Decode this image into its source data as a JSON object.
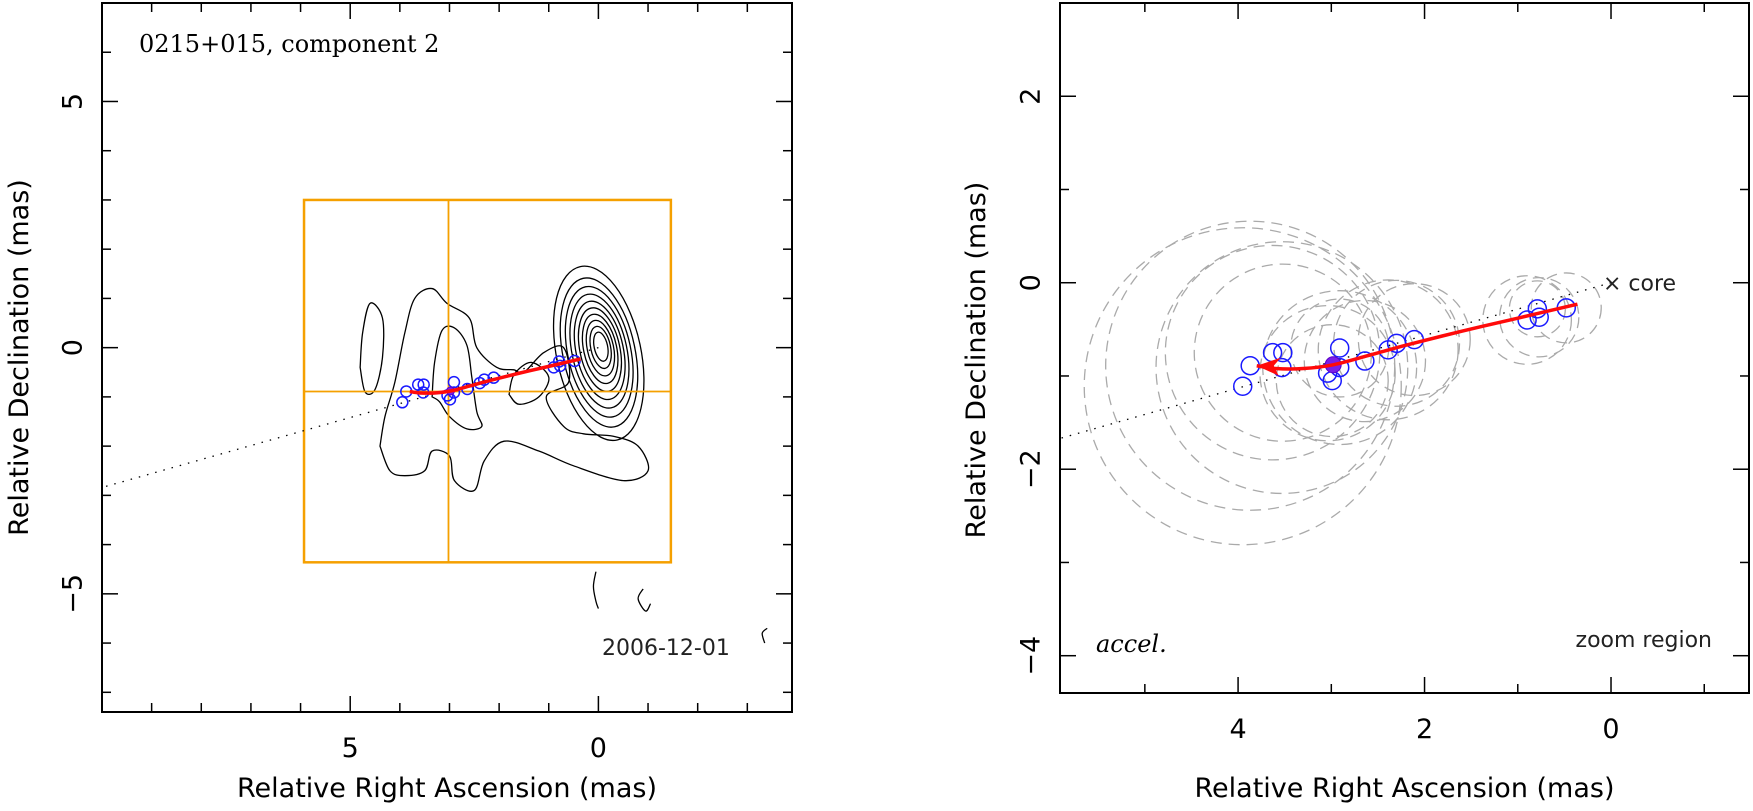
{
  "chart_data": [
    {
      "type": "scatter",
      "panel": "left",
      "title": "0215+015, component 2",
      "xlabel": "Relative Right Ascension (mas)",
      "ylabel": "Relative Declination (mas)",
      "xlim": [
        10.0,
        -3.9
      ],
      "ylim": [
        -7.4,
        7.0
      ],
      "x_major_ticks": [
        5,
        0
      ],
      "x_minor_step": 1,
      "y_major_ticks": [
        5,
        0,
        -5
      ],
      "y_minor_step": 1,
      "epoch_label": "2006-12-01",
      "zoom_box": {
        "x": [
          5.93,
          -1.46
        ],
        "y": [
          3.0,
          -4.36
        ],
        "crosshair": [
          3.02,
          -0.89
        ]
      },
      "ridge_line": {
        "from": [
          0,
          0
        ],
        "to": [
          10.0,
          -2.84
        ],
        "style": "dotted"
      },
      "contours": {
        "core": {
          "center": [
            -0.05,
            0.02
          ],
          "levels": 10,
          "outer_size": [
            1.7,
            3.6
          ],
          "inner_size": [
            0.27,
            0.6
          ],
          "tilt_deg": -12
        },
        "extended": [
          [
            [
              4.8,
              -0.4
            ],
            [
              4.75,
              0.3
            ],
            [
              4.6,
              0.9
            ],
            [
              4.35,
              0.6
            ],
            [
              4.35,
              -0.2
            ],
            [
              4.5,
              -0.85
            ],
            [
              4.7,
              -0.9
            ],
            [
              4.8,
              -0.4
            ]
          ],
          [
            [
              4.4,
              -2.0
            ],
            [
              4.3,
              -1.4
            ],
            [
              4.1,
              -0.7
            ],
            [
              3.9,
              0.3
            ],
            [
              3.7,
              1.0
            ],
            [
              3.35,
              1.2
            ],
            [
              3.05,
              0.9
            ],
            [
              2.6,
              0.6
            ],
            [
              2.45,
              0.0
            ],
            [
              2.05,
              -0.4
            ],
            [
              1.7,
              -0.45
            ],
            [
              1.5,
              -0.5
            ],
            [
              1.1,
              -0.1
            ],
            [
              0.7,
              0.0
            ],
            [
              0.6,
              -0.7
            ],
            [
              1.05,
              -1.0
            ],
            [
              0.7,
              -1.6
            ],
            [
              0.3,
              -1.75
            ],
            [
              -0.3,
              -1.8
            ],
            [
              -0.8,
              -2.0
            ],
            [
              -1.0,
              -2.5
            ],
            [
              -0.5,
              -2.7
            ],
            [
              0.5,
              -2.4
            ],
            [
              1.2,
              -2.1
            ],
            [
              1.9,
              -1.9
            ],
            [
              2.3,
              -2.3
            ],
            [
              2.5,
              -2.9
            ],
            [
              2.9,
              -2.7
            ],
            [
              3.0,
              -2.2
            ],
            [
              3.35,
              -2.1
            ],
            [
              3.5,
              -2.5
            ],
            [
              3.9,
              -2.6
            ],
            [
              4.2,
              -2.5
            ],
            [
              4.4,
              -2.0
            ]
          ],
          [
            [
              3.35,
              -1.0
            ],
            [
              3.3,
              -0.3
            ],
            [
              3.15,
              0.35
            ],
            [
              2.9,
              0.4
            ],
            [
              2.65,
              0.05
            ],
            [
              2.55,
              -0.6
            ],
            [
              2.45,
              -1.3
            ],
            [
              2.35,
              -1.6
            ],
            [
              2.65,
              -1.65
            ],
            [
              3.0,
              -1.4
            ],
            [
              3.2,
              -1.1
            ],
            [
              3.35,
              -1.0
            ]
          ],
          [
            [
              1.8,
              -0.95
            ],
            [
              1.7,
              -0.55
            ],
            [
              1.35,
              -0.3
            ],
            [
              1.0,
              -0.6
            ],
            [
              1.2,
              -1.0
            ],
            [
              1.6,
              -1.15
            ],
            [
              1.8,
              -0.95
            ]
          ]
        ],
        "negative": [
          [
            [
              0.05,
              -4.55
            ],
            [
              0.1,
              -4.85
            ],
            [
              0.05,
              -5.15
            ],
            [
              0.0,
              -5.3
            ]
          ],
          [
            [
              -0.9,
              -4.9
            ],
            [
              -0.8,
              -5.1
            ],
            [
              -0.95,
              -5.35
            ],
            [
              -1.05,
              -5.2
            ]
          ],
          [
            [
              -3.35,
              -6.0
            ],
            [
              -3.3,
              -5.8
            ],
            [
              -3.4,
              -5.7
            ]
          ]
        ]
      }
    },
    {
      "type": "scatter",
      "panel": "right",
      "xlabel": "Relative Right Ascension (mas)",
      "ylabel": "Relative Declination (mas)",
      "xlim": [
        5.91,
        -1.48
      ],
      "ylim": [
        -4.4,
        3.0
      ],
      "x_major_ticks": [
        4,
        2,
        0
      ],
      "x_minor_step": 1,
      "y_major_ticks": [
        2,
        0,
        -2,
        -4
      ],
      "y_minor_step": 1,
      "core_label": "core",
      "core_marker": "×",
      "corner_left_label": "accel.",
      "corner_right_label": "zoom region",
      "ridge_line": {
        "from": [
          0,
          0
        ],
        "to": [
          5.91,
          -1.67
        ],
        "style": "dotted"
      },
      "components": [
        {
          "x": 0.48,
          "y": -0.27,
          "fwhm": 0.75
        },
        {
          "x": 0.79,
          "y": -0.28,
          "fwhm": 0.6
        },
        {
          "x": 0.77,
          "y": -0.37,
          "fwhm": 0.85
        },
        {
          "x": 0.9,
          "y": -0.4,
          "fwhm": 0.95
        },
        {
          "x": 2.11,
          "y": -0.61,
          "fwhm": 1.2
        },
        {
          "x": 2.3,
          "y": -0.65,
          "fwhm": 1.35
        },
        {
          "x": 2.39,
          "y": -0.72,
          "fwhm": 1.5
        },
        {
          "x": 2.64,
          "y": -0.84,
          "fwhm": 1.3
        },
        {
          "x": 2.91,
          "y": -0.7,
          "fwhm": 1.05
        },
        {
          "x": 2.91,
          "y": -0.91,
          "fwhm": 1.65
        },
        {
          "x": 3.04,
          "y": -0.97,
          "fwhm": 1.45
        },
        {
          "x": 2.99,
          "y": -1.05,
          "fwhm": 1.2
        },
        {
          "x": 3.52,
          "y": -0.75,
          "fwhm": 1.9
        },
        {
          "x": 3.63,
          "y": -0.75,
          "fwhm": 2.3
        },
        {
          "x": 3.53,
          "y": -0.91,
          "fwhm": 2.7
        },
        {
          "x": 3.87,
          "y": -0.89,
          "fwhm": 3.1
        },
        {
          "x": 3.95,
          "y": -1.11,
          "fwhm": 3.4
        }
      ],
      "reference_epoch_point": {
        "x": 2.98,
        "y": -0.88
      },
      "trajectory_fit": {
        "points": [
          [
            0.36,
            -0.23
          ],
          [
            1.0,
            -0.38
          ],
          [
            1.6,
            -0.52
          ],
          [
            2.2,
            -0.67
          ],
          [
            2.6,
            -0.78
          ],
          [
            2.98,
            -0.88
          ],
          [
            3.3,
            -0.92
          ],
          [
            3.6,
            -0.92
          ],
          [
            3.8,
            -0.89
          ]
        ],
        "arrow_at_end": true
      }
    }
  ]
}
